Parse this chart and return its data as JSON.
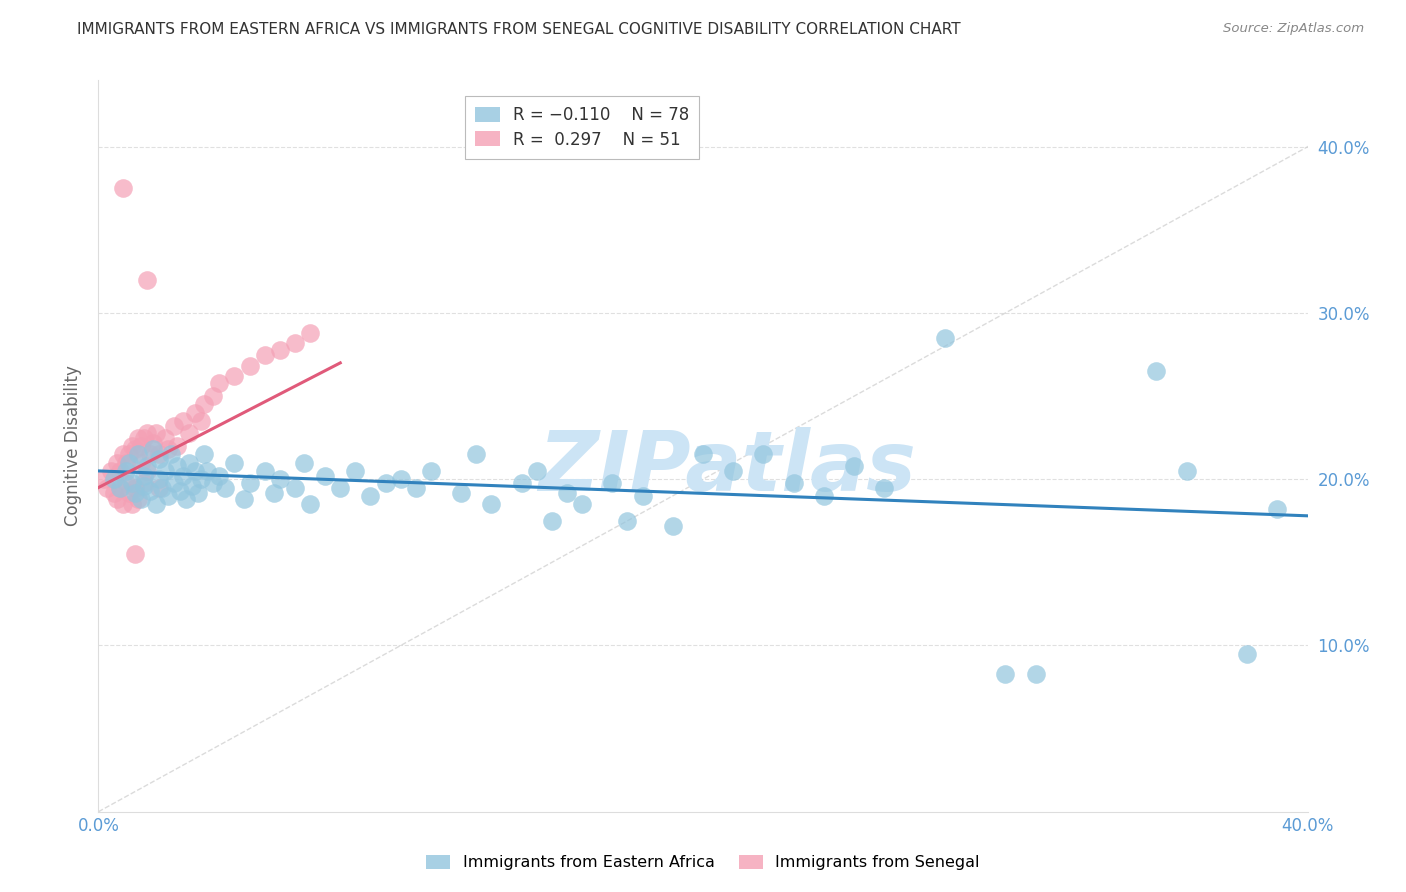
{
  "title": "IMMIGRANTS FROM EASTERN AFRICA VS IMMIGRANTS FROM SENEGAL COGNITIVE DISABILITY CORRELATION CHART",
  "source": "Source: ZipAtlas.com",
  "ylabel": "Cognitive Disability",
  "xlim": [
    0.0,
    0.4
  ],
  "ylim": [
    0.0,
    0.44
  ],
  "color_blue": "#92c5de",
  "color_pink": "#f4a0b5",
  "color_line_blue": "#3182bd",
  "color_line_pink": "#e05a7a",
  "color_diag": "#cccccc",
  "color_grid": "#cccccc",
  "color_axis": "#5b9bd5",
  "watermark": "ZIPatlas",
  "watermark_color": "#cce4f5",
  "background_color": "#ffffff",
  "blue_x": [
    0.005,
    0.007,
    0.009,
    0.01,
    0.011,
    0.012,
    0.013,
    0.014,
    0.015,
    0.015,
    0.016,
    0.017,
    0.018,
    0.019,
    0.02,
    0.02,
    0.021,
    0.022,
    0.023,
    0.024,
    0.025,
    0.026,
    0.027,
    0.028,
    0.029,
    0.03,
    0.031,
    0.032,
    0.033,
    0.034,
    0.035,
    0.036,
    0.038,
    0.04,
    0.042,
    0.045,
    0.048,
    0.05,
    0.055,
    0.058,
    0.06,
    0.065,
    0.068,
    0.07,
    0.075,
    0.08,
    0.085,
    0.09,
    0.095,
    0.1,
    0.105,
    0.11,
    0.12,
    0.125,
    0.13,
    0.14,
    0.145,
    0.15,
    0.155,
    0.16,
    0.17,
    0.175,
    0.18,
    0.19,
    0.2,
    0.21,
    0.22,
    0.23,
    0.25,
    0.26,
    0.3,
    0.31,
    0.35,
    0.36,
    0.38,
    0.39,
    0.24,
    0.28
  ],
  "blue_y": [
    0.2,
    0.195,
    0.205,
    0.21,
    0.198,
    0.192,
    0.215,
    0.188,
    0.202,
    0.196,
    0.208,
    0.193,
    0.218,
    0.185,
    0.2,
    0.212,
    0.195,
    0.205,
    0.19,
    0.215,
    0.198,
    0.208,
    0.193,
    0.202,
    0.188,
    0.21,
    0.196,
    0.205,
    0.192,
    0.2,
    0.215,
    0.205,
    0.198,
    0.202,
    0.195,
    0.21,
    0.188,
    0.198,
    0.205,
    0.192,
    0.2,
    0.195,
    0.21,
    0.185,
    0.202,
    0.195,
    0.205,
    0.19,
    0.198,
    0.2,
    0.195,
    0.205,
    0.192,
    0.215,
    0.185,
    0.198,
    0.205,
    0.175,
    0.192,
    0.185,
    0.198,
    0.175,
    0.19,
    0.172,
    0.215,
    0.205,
    0.215,
    0.198,
    0.208,
    0.195,
    0.083,
    0.083,
    0.265,
    0.205,
    0.095,
    0.182,
    0.19,
    0.285
  ],
  "pink_x": [
    0.002,
    0.003,
    0.004,
    0.005,
    0.006,
    0.006,
    0.007,
    0.007,
    0.008,
    0.008,
    0.009,
    0.009,
    0.01,
    0.01,
    0.011,
    0.011,
    0.012,
    0.012,
    0.013,
    0.013,
    0.014,
    0.014,
    0.015,
    0.015,
    0.016,
    0.016,
    0.017,
    0.018,
    0.019,
    0.02,
    0.02,
    0.022,
    0.023,
    0.025,
    0.026,
    0.028,
    0.03,
    0.032,
    0.034,
    0.035,
    0.038,
    0.04,
    0.045,
    0.05,
    0.055,
    0.06,
    0.065,
    0.07,
    0.008,
    0.016,
    0.012
  ],
  "pink_y": [
    0.2,
    0.195,
    0.205,
    0.192,
    0.21,
    0.188,
    0.205,
    0.195,
    0.215,
    0.185,
    0.21,
    0.198,
    0.215,
    0.192,
    0.22,
    0.185,
    0.218,
    0.195,
    0.225,
    0.188,
    0.22,
    0.21,
    0.225,
    0.198,
    0.228,
    0.205,
    0.215,
    0.222,
    0.228,
    0.215,
    0.195,
    0.225,
    0.218,
    0.232,
    0.22,
    0.235,
    0.228,
    0.24,
    0.235,
    0.245,
    0.25,
    0.258,
    0.262,
    0.268,
    0.275,
    0.278,
    0.282,
    0.288,
    0.375,
    0.32,
    0.155
  ],
  "blue_line_x": [
    0.0,
    0.4
  ],
  "blue_line_y": [
    0.205,
    0.178
  ],
  "pink_line_x": [
    0.0,
    0.08
  ],
  "pink_line_y": [
    0.195,
    0.27
  ]
}
